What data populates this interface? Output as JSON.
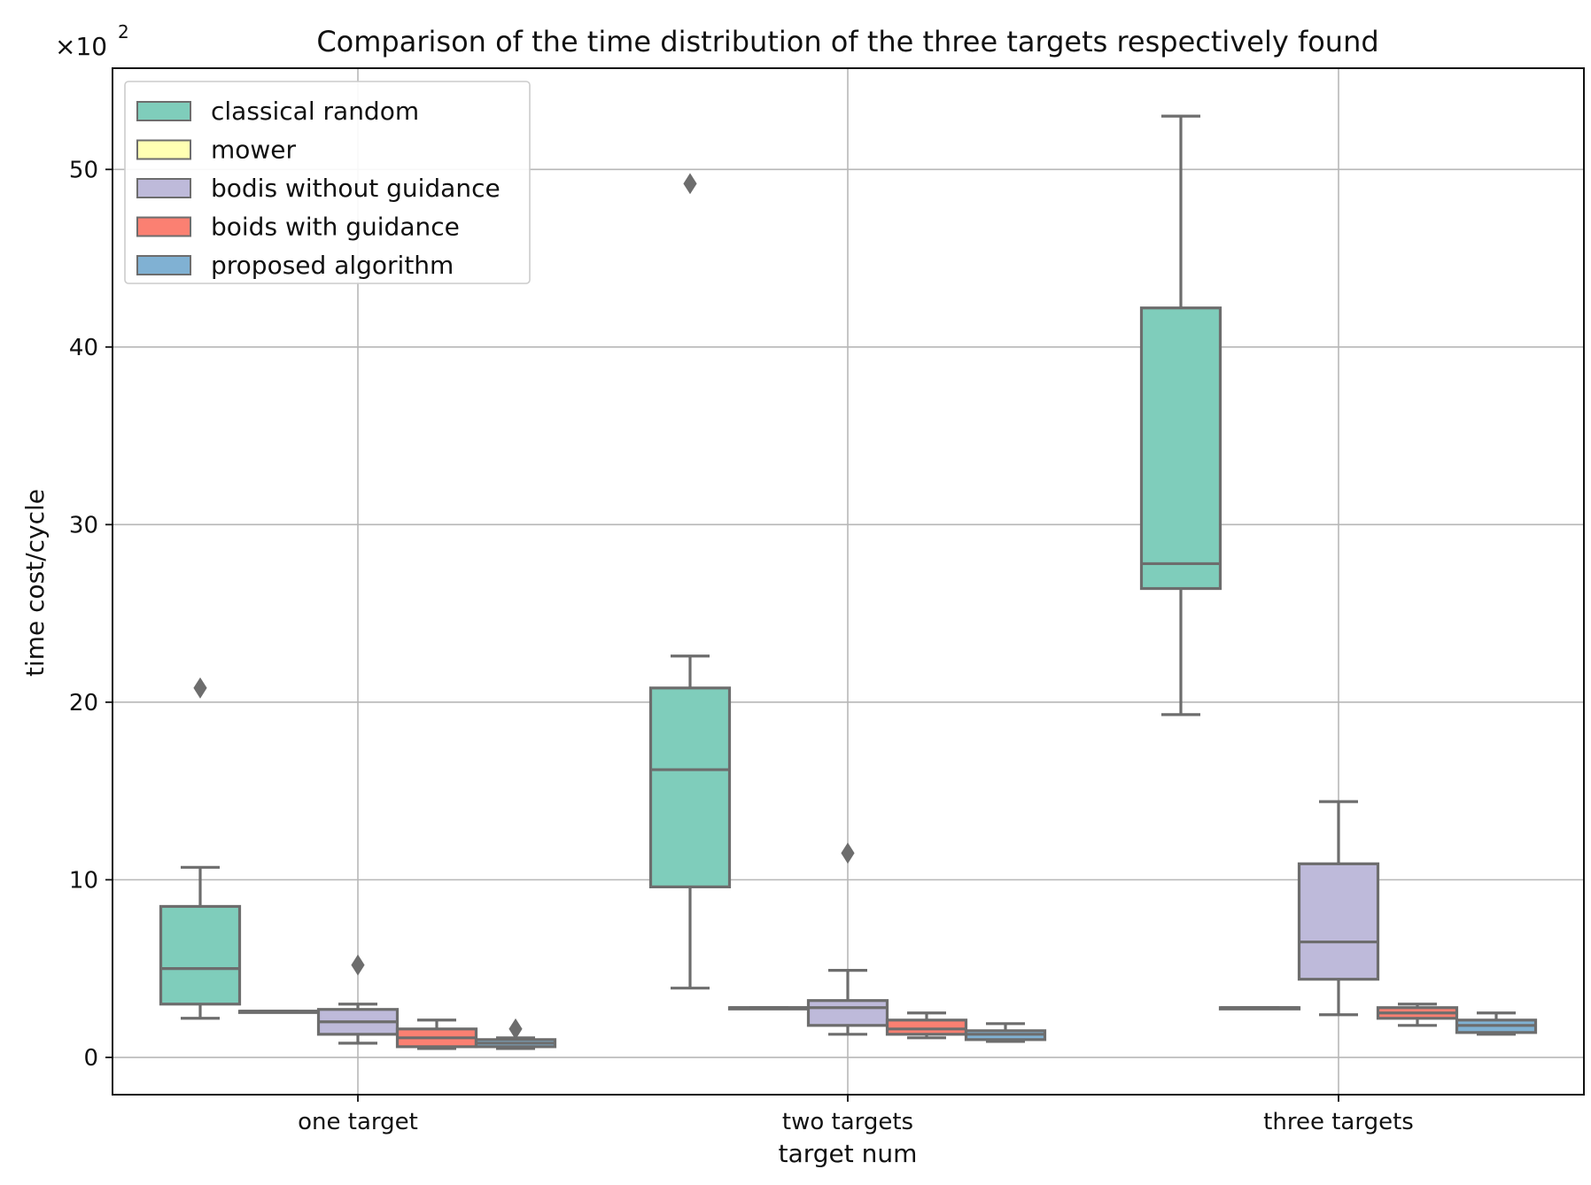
{
  "chart_data": {
    "type": "box",
    "title": "Comparison of the time distribution of the three targets respectively found",
    "xlabel": "target num",
    "ylabel": "time cost/cycle",
    "scale_label": "×10",
    "scale_exponent": "2",
    "categories": [
      "one target",
      "two targets",
      "three targets"
    ],
    "ylim": [
      -2.1,
      55.7
    ],
    "yticks": [
      0,
      10,
      20,
      30,
      40,
      50
    ],
    "grid": true,
    "legend_position": "top-left",
    "series": [
      {
        "name": "classical random",
        "color": "#7fcdbb",
        "boxes": [
          {
            "whisker_low": 2.2,
            "q1": 3.0,
            "median": 5.0,
            "q3": 8.5,
            "whisker_high": 10.7,
            "outliers": [
              20.8
            ]
          },
          {
            "whisker_low": 3.9,
            "q1": 9.6,
            "median": 16.2,
            "q3": 20.8,
            "whisker_high": 22.6,
            "outliers": [
              49.2
            ]
          },
          {
            "whisker_low": 19.3,
            "q1": 26.4,
            "median": 27.8,
            "q3": 42.2,
            "whisker_high": 53.0,
            "outliers": []
          }
        ]
      },
      {
        "name": "mower",
        "color": "#ffffb3",
        "boxes": [
          {
            "whisker_low": 2.6,
            "q1": 2.6,
            "median": 2.6,
            "q3": 2.6,
            "whisker_high": 2.6,
            "outliers": []
          },
          {
            "whisker_low": 2.8,
            "q1": 2.8,
            "median": 2.8,
            "q3": 2.8,
            "whisker_high": 2.8,
            "outliers": []
          },
          {
            "whisker_low": 2.8,
            "q1": 2.8,
            "median": 2.8,
            "q3": 2.8,
            "whisker_high": 2.8,
            "outliers": []
          }
        ]
      },
      {
        "name": "bodis without guidance",
        "color": "#bebada",
        "boxes": [
          {
            "whisker_low": 0.8,
            "q1": 1.3,
            "median": 2.0,
            "q3": 2.7,
            "whisker_high": 3.0,
            "outliers": [
              5.2
            ]
          },
          {
            "whisker_low": 1.3,
            "q1": 1.8,
            "median": 2.8,
            "q3": 3.2,
            "whisker_high": 4.9,
            "outliers": [
              11.5
            ]
          },
          {
            "whisker_low": 2.4,
            "q1": 4.4,
            "median": 6.5,
            "q3": 10.9,
            "whisker_high": 14.4,
            "outliers": []
          }
        ]
      },
      {
        "name": "boids with guidance",
        "color": "#fb8072",
        "boxes": [
          {
            "whisker_low": 0.5,
            "q1": 0.6,
            "median": 1.1,
            "q3": 1.6,
            "whisker_high": 2.1,
            "outliers": []
          },
          {
            "whisker_low": 1.1,
            "q1": 1.3,
            "median": 1.6,
            "q3": 2.1,
            "whisker_high": 2.5,
            "outliers": []
          },
          {
            "whisker_low": 1.8,
            "q1": 2.2,
            "median": 2.5,
            "q3": 2.8,
            "whisker_high": 3.0,
            "outliers": []
          }
        ]
      },
      {
        "name": "proposed algorithm",
        "color": "#80b1d3",
        "boxes": [
          {
            "whisker_low": 0.5,
            "q1": 0.6,
            "median": 0.8,
            "q3": 1.0,
            "whisker_high": 1.1,
            "outliers": [
              1.6
            ]
          },
          {
            "whisker_low": 0.9,
            "q1": 1.0,
            "median": 1.3,
            "q3": 1.5,
            "whisker_high": 1.9,
            "outliers": []
          },
          {
            "whisker_low": 1.3,
            "q1": 1.4,
            "median": 1.8,
            "q3": 2.1,
            "whisker_high": 2.5,
            "outliers": []
          }
        ]
      }
    ]
  }
}
